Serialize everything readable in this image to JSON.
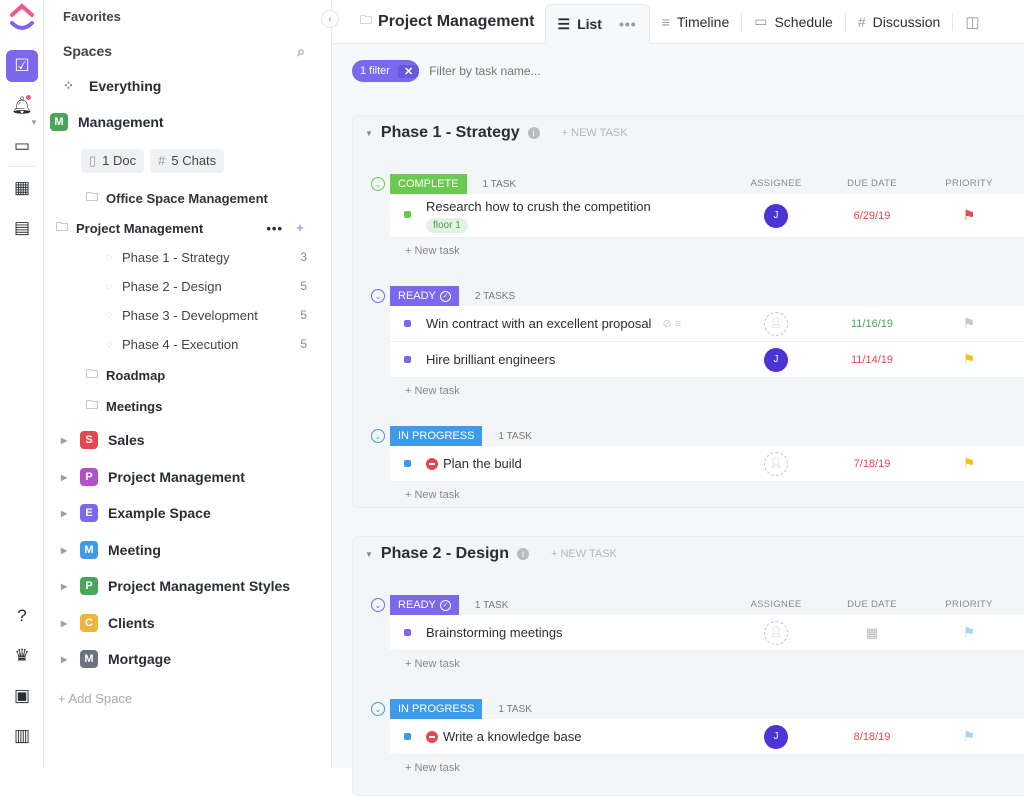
{
  "rail": {
    "icons": [
      "clickup-logo",
      "tasks-icon",
      "notifications-icon",
      "inbox-icon",
      "dashboards-icon",
      "docs-icon",
      "help-icon",
      "goals-trophy-icon",
      "portfolio-icon",
      "clipboard-icon"
    ]
  },
  "sidebar": {
    "favorites": "Favorites",
    "spaces": "Spaces",
    "everything": "Everything",
    "management": {
      "letter": "M",
      "name": "Management",
      "color": "#49a55a",
      "doc": "1 Doc",
      "chats": "5 Chats"
    },
    "folders": [
      {
        "name": "Office Space Management"
      },
      {
        "name": "Project Management",
        "selected": true
      }
    ],
    "lists": [
      {
        "name": "Phase 1 - Strategy",
        "count": "3"
      },
      {
        "name": "Phase 2 - Design",
        "count": "5"
      },
      {
        "name": "Phase 3 - Development",
        "count": "5"
      },
      {
        "name": "Phase 4 - Execution",
        "count": "5"
      }
    ],
    "other_folders": [
      {
        "name": "Roadmap"
      },
      {
        "name": "Meetings"
      }
    ],
    "spaces_list": [
      {
        "letter": "S",
        "name": "Sales",
        "color": "#e5484d"
      },
      {
        "letter": "P",
        "name": "Project Management",
        "color": "#b44fc7"
      },
      {
        "letter": "E",
        "name": "Example Space",
        "color": "#7b68ee"
      },
      {
        "letter": "M",
        "name": "Meeting",
        "color": "#3d9be9"
      },
      {
        "letter": "P",
        "name": "Project Management Styles",
        "color": "#49a55a"
      },
      {
        "letter": "C",
        "name": "Clients",
        "color": "#f0b53a"
      },
      {
        "letter": "M",
        "name": "Mortgage",
        "color": "#6b7280"
      }
    ],
    "add_space": "+ Add Space"
  },
  "header": {
    "title": "Project Management",
    "tabs": [
      {
        "label": "List",
        "active": true
      },
      {
        "label": "Timeline"
      },
      {
        "label": "Schedule"
      },
      {
        "label": "Discussion"
      }
    ]
  },
  "filter": {
    "chip": "1 filter",
    "placeholder": "Filter by task name..."
  },
  "columns": {
    "assignee": "ASSIGNEE",
    "due": "DUE DATE",
    "priority": "PRIORITY"
  },
  "new_task_header": "+ NEW TASK",
  "new_task_row": "+ New task",
  "phases": [
    {
      "title": "Phase 1 - Strategy",
      "groups": [
        {
          "status": "COMPLETE",
          "color": "#6bc950",
          "count": "1 TASK",
          "tasks": [
            {
              "name": "Research how to crush the competition",
              "tag": "floor 1",
              "assignee": "J",
              "due": "6/29/19",
              "due_color": "#e5484d",
              "priority_color": "#e5484d"
            }
          ]
        },
        {
          "status": "READY",
          "color": "#7b68ee",
          "count": "2 TASKS",
          "tasks": [
            {
              "name": "Win contract with an excellent proposal",
              "assignee": "",
              "due": "11/16/19",
              "due_color": "#49a55a",
              "priority_color": "#c4c7cc"
            },
            {
              "name": "Hire brilliant engineers",
              "assignee": "J",
              "due": "11/14/19",
              "due_color": "#e5484d",
              "priority_color": "#f5c518"
            }
          ]
        },
        {
          "status": "IN PROGRESS",
          "color": "#3d9be9",
          "count": "1 TASK",
          "tasks": [
            {
              "name": "Plan the build",
              "blocked": true,
              "assignee": "",
              "due": "7/18/19",
              "due_color": "#e5484d",
              "priority_color": "#f5c518"
            }
          ]
        }
      ]
    },
    {
      "title": "Phase 2 - Design",
      "groups": [
        {
          "status": "READY",
          "color": "#7b68ee",
          "count": "1 TASK",
          "tasks": [
            {
              "name": "Brainstorming meetings",
              "assignee": "",
              "due": "",
              "priority_color": "#a7d8f0"
            }
          ]
        },
        {
          "status": "IN PROGRESS",
          "color": "#3d9be9",
          "count": "1 TASK",
          "tasks": [
            {
              "name": "Write a knowledge base",
              "blocked": true,
              "assignee": "J",
              "due": "8/18/19",
              "due_color": "#e5484d",
              "priority_color": "#a7d8f0"
            }
          ]
        }
      ]
    }
  ]
}
